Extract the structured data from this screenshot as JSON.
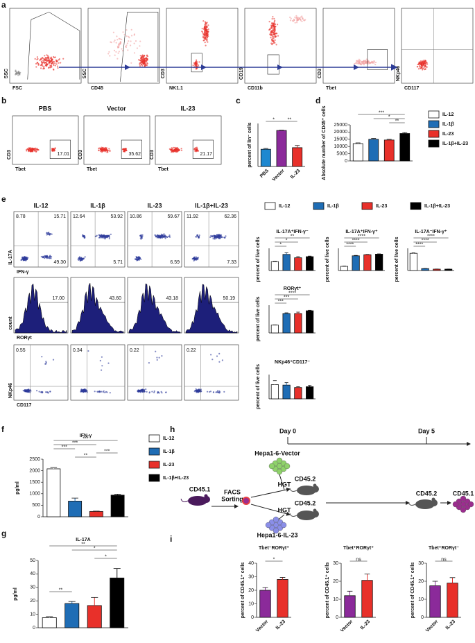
{
  "panel_a": {
    "label": "a",
    "plots": [
      {
        "x_label": "FSC",
        "y_label": "SSC"
      },
      {
        "x_label": "CD45",
        "y_label": "SSC"
      },
      {
        "x_label": "NK1.1",
        "y_label": "CD3"
      },
      {
        "x_label": "CD11b",
        "y_label": "CD19"
      },
      {
        "x_label": "Tbet",
        "y_label": "CD3"
      },
      {
        "x_label": "CD117",
        "y_label": "NKp46"
      }
    ]
  },
  "panel_b": {
    "label": "b",
    "plots": [
      {
        "title": "PBS",
        "color": "#1e88d0",
        "gate": "17.01",
        "x_label": "Tbet",
        "y_label": "CD3"
      },
      {
        "title": "Vector",
        "color": "#8b2a9a",
        "gate": "35.62",
        "x_label": "Tbet",
        "y_label": "CD3"
      },
      {
        "title": "IL-23",
        "color": "#e8302a",
        "gate": "21.17",
        "x_label": "Tbet",
        "y_label": "CD3"
      }
    ]
  },
  "panel_c": {
    "label": "c",
    "chart": {
      "type": "bar",
      "y_label": "percent of lin⁻ cells",
      "categories": [
        "PBS",
        "Vector",
        "IL-23"
      ],
      "values": [
        16,
        33.5,
        17.5
      ],
      "errors": [
        0.8,
        0.3,
        2
      ],
      "colors": [
        "#1e88d0",
        "#8b2a9a",
        "#e8302a"
      ],
      "ylim": [
        0,
        40
      ],
      "significance": [
        "*",
        "**"
      ]
    }
  },
  "panel_d": {
    "label": "d",
    "chart": {
      "type": "bar",
      "y_label": "Absolute number of CD45⁺ cells",
      "values": [
        12000,
        15000,
        14500,
        19000
      ],
      "errors": [
        500,
        600,
        500,
        600
      ],
      "colors": [
        "#ffffff",
        "#1f6db5",
        "#e8302a",
        "#000000"
      ],
      "ylim": [
        0,
        25000
      ],
      "yticks": [
        0,
        5000,
        10000,
        15000,
        20000,
        25000
      ],
      "significance": [
        "***",
        "*",
        "**"
      ]
    },
    "legend": {
      "series": [
        {
          "name": "IL-12",
          "color": "#ffffff"
        },
        {
          "name": "IL-1β",
          "color": "#1f6db5"
        },
        {
          "name": "IL-23",
          "color": "#e8302a"
        },
        {
          "name": "IL-1β+IL-23",
          "color": "#000000"
        }
      ]
    }
  },
  "panel_e": {
    "label": "e",
    "columns": [
      "IL-12",
      "IL-1β",
      "IL-23",
      "IL-1β+IL-23"
    ],
    "rows": [
      {
        "x_label": "IFN-γ",
        "y_label": "IL-17A",
        "gates": [
          [
            "8.78",
            "15.71",
            "49.30"
          ],
          [
            "12.64",
            "53.92",
            "5.71"
          ],
          [
            "10.86",
            "59.67",
            "6.59"
          ],
          [
            "11.92",
            "62.36",
            "7.33"
          ]
        ]
      },
      {
        "x_label": "RORγt",
        "y_label": "count",
        "gates": [
          [
            "17.00"
          ],
          [
            "43.60"
          ],
          [
            "43.18"
          ],
          [
            "50.19"
          ]
        ]
      },
      {
        "x_label": "CD117",
        "y_label": "NKp46",
        "gates": [
          [
            "0.55"
          ],
          [
            "0.34"
          ],
          [
            "0.22"
          ],
          [
            "0.22"
          ]
        ]
      }
    ],
    "legend": {
      "series": [
        {
          "name": "IL-12",
          "color": "#ffffff"
        },
        {
          "name": "IL-1β",
          "color": "#1f6db5"
        },
        {
          "name": "IL-23",
          "color": "#e8302a"
        },
        {
          "name": "IL-1β+IL-23",
          "color": "#000000"
        }
      ]
    },
    "charts": [
      {
        "type": "bar",
        "title": "IL-17A⁺IFN-γ⁻",
        "y_label": "percent of live cells",
        "values": [
          8,
          14.5,
          11.5,
          12.5
        ],
        "errors": [
          0.5,
          1.5,
          1,
          0.5
        ],
        "colors": [
          "#ffffff",
          "#1f6db5",
          "#e8302a",
          "#000000"
        ],
        "ylim": [
          0,
          20
        ],
        "significance": [
          "**",
          "*",
          "*"
        ]
      },
      {
        "type": "bar",
        "title": "IL-17A⁺IFN-γ⁺",
        "y_label": "percent of live cells",
        "values": [
          15,
          53,
          57,
          59
        ],
        "errors": [
          1,
          1.5,
          1,
          1
        ],
        "colors": [
          "#ffffff",
          "#1f6db5",
          "#e8302a",
          "#000000"
        ],
        "ylim": [
          0,
          80
        ],
        "significance": [
          "****",
          "****",
          "****"
        ]
      },
      {
        "type": "bar",
        "title": "IL-17A⁻IFN-γ⁺",
        "y_label": "percent of live cells",
        "values": [
          62,
          7,
          5,
          5
        ],
        "errors": [
          1.5,
          0.5,
          0.4,
          0.4
        ],
        "colors": [
          "#ffffff",
          "#1f6db5",
          "#e8302a",
          "#000000"
        ],
        "ylim": [
          0,
          80
        ],
        "significance": [
          "****",
          "****",
          "****"
        ]
      },
      {
        "type": "bar",
        "title": "RORγt⁺",
        "y_label": "percent of live cells",
        "values": [
          17,
          42,
          42,
          48
        ],
        "errors": [
          0.5,
          1.5,
          3,
          1
        ],
        "colors": [
          "#ffffff",
          "#1f6db5",
          "#e8302a",
          "#000000"
        ],
        "ylim": [
          0,
          60
        ],
        "significance": [
          "****",
          "***",
          "***"
        ]
      },
      {
        "type": "bar",
        "title": "NKp46⁺CD117⁻",
        "y_label": "percent of live cells",
        "values": [
          0.35,
          0.34,
          0.28,
          0.3
        ],
        "errors": [
          0.1,
          0.06,
          0.02,
          0.03
        ],
        "colors": [
          "#ffffff",
          "#1f6db5",
          "#e8302a",
          "#000000"
        ],
        "ylim": [
          0,
          0.6
        ]
      }
    ]
  },
  "panel_f": {
    "label": "f",
    "chart": {
      "type": "bar",
      "title": "IFN-γ",
      "y_label": "pg/ml",
      "values": [
        2080,
        680,
        230,
        940
      ],
      "errors": [
        70,
        130,
        15,
        40
      ],
      "colors": [
        "#ffffff",
        "#1f6db5",
        "#e8302a",
        "#000000"
      ],
      "ylim": [
        0,
        2500
      ],
      "yticks": [
        0,
        500,
        1000,
        1500,
        2000,
        2500
      ],
      "significance": [
        "***",
        "***",
        "***",
        "**",
        "***"
      ]
    },
    "legend": {
      "series": [
        {
          "name": "IL-12",
          "color": "#ffffff"
        },
        {
          "name": "IL-1β",
          "color": "#1f6db5"
        },
        {
          "name": "IL-23",
          "color": "#e8302a"
        },
        {
          "name": "IL-1β+IL-23",
          "color": "#000000"
        }
      ]
    }
  },
  "panel_g": {
    "label": "g",
    "chart": {
      "type": "bar",
      "title": "IL-17A",
      "y_label": "pg/ml",
      "values": [
        7.5,
        18,
        16.5,
        37
      ],
      "errors": [
        0.8,
        1.5,
        6,
        7
      ],
      "colors": [
        "#ffffff",
        "#1f6db5",
        "#e8302a",
        "#000000"
      ],
      "ylim": [
        0,
        50
      ],
      "yticks": [
        0,
        10,
        20,
        30,
        40,
        50
      ],
      "significance": [
        "**",
        "**",
        "*",
        "*"
      ]
    }
  },
  "panel_h": {
    "label": "h",
    "day_start": "Day 0",
    "day_end": "Day 5",
    "tumor_vector": "Hepa1-6-Vector",
    "tumor_il23": "Hepa1-6-IL-23",
    "donor": "CD45.1",
    "sort_1": "FACS",
    "sort_2": "Sorting",
    "transfer_1": "HGT",
    "transfer_2": "HGT",
    "host_1": "CD45.2",
    "host_2": "CD45.2",
    "host_3": "CD45.2",
    "recovered": "CD45.1"
  },
  "panel_i": {
    "label": "i",
    "charts": [
      {
        "type": "bar",
        "title": "Tbet⁻RORγt⁺",
        "y_label": "percent of CD45.1⁺ cells",
        "categories": [
          "Vector",
          "IL-23"
        ],
        "values": [
          20,
          28
        ],
        "errors": [
          2,
          1.5
        ],
        "colors": [
          "#8b2a9a",
          "#e8302a"
        ],
        "ylim": [
          0,
          40
        ],
        "yticks": [
          0,
          10,
          20,
          30,
          40
        ],
        "significance": [
          "*"
        ]
      },
      {
        "type": "bar",
        "title": "Tbet⁺RORγt⁺",
        "y_label": "percent of CD45.1⁺ cells",
        "categories": [
          "Vector",
          "IL-23"
        ],
        "values": [
          12,
          20.5
        ],
        "errors": [
          2.5,
          3.5
        ],
        "colors": [
          "#8b2a9a",
          "#e8302a"
        ],
        "ylim": [
          0,
          30
        ],
        "yticks": [
          0,
          10,
          20,
          30
        ],
        "significance": [
          "ns"
        ]
      },
      {
        "type": "bar",
        "title": "Tbet⁺RORγt⁻",
        "y_label": "percent of CD45.1⁺ cells",
        "categories": [
          "Vector",
          "IL-23"
        ],
        "values": [
          17.5,
          19
        ],
        "errors": [
          2.5,
          3
        ],
        "colors": [
          "#8b2a9a",
          "#e8302a"
        ],
        "ylim": [
          0,
          30
        ],
        "yticks": [
          0,
          10,
          20,
          30
        ],
        "significance": [
          "ns"
        ]
      }
    ]
  }
}
